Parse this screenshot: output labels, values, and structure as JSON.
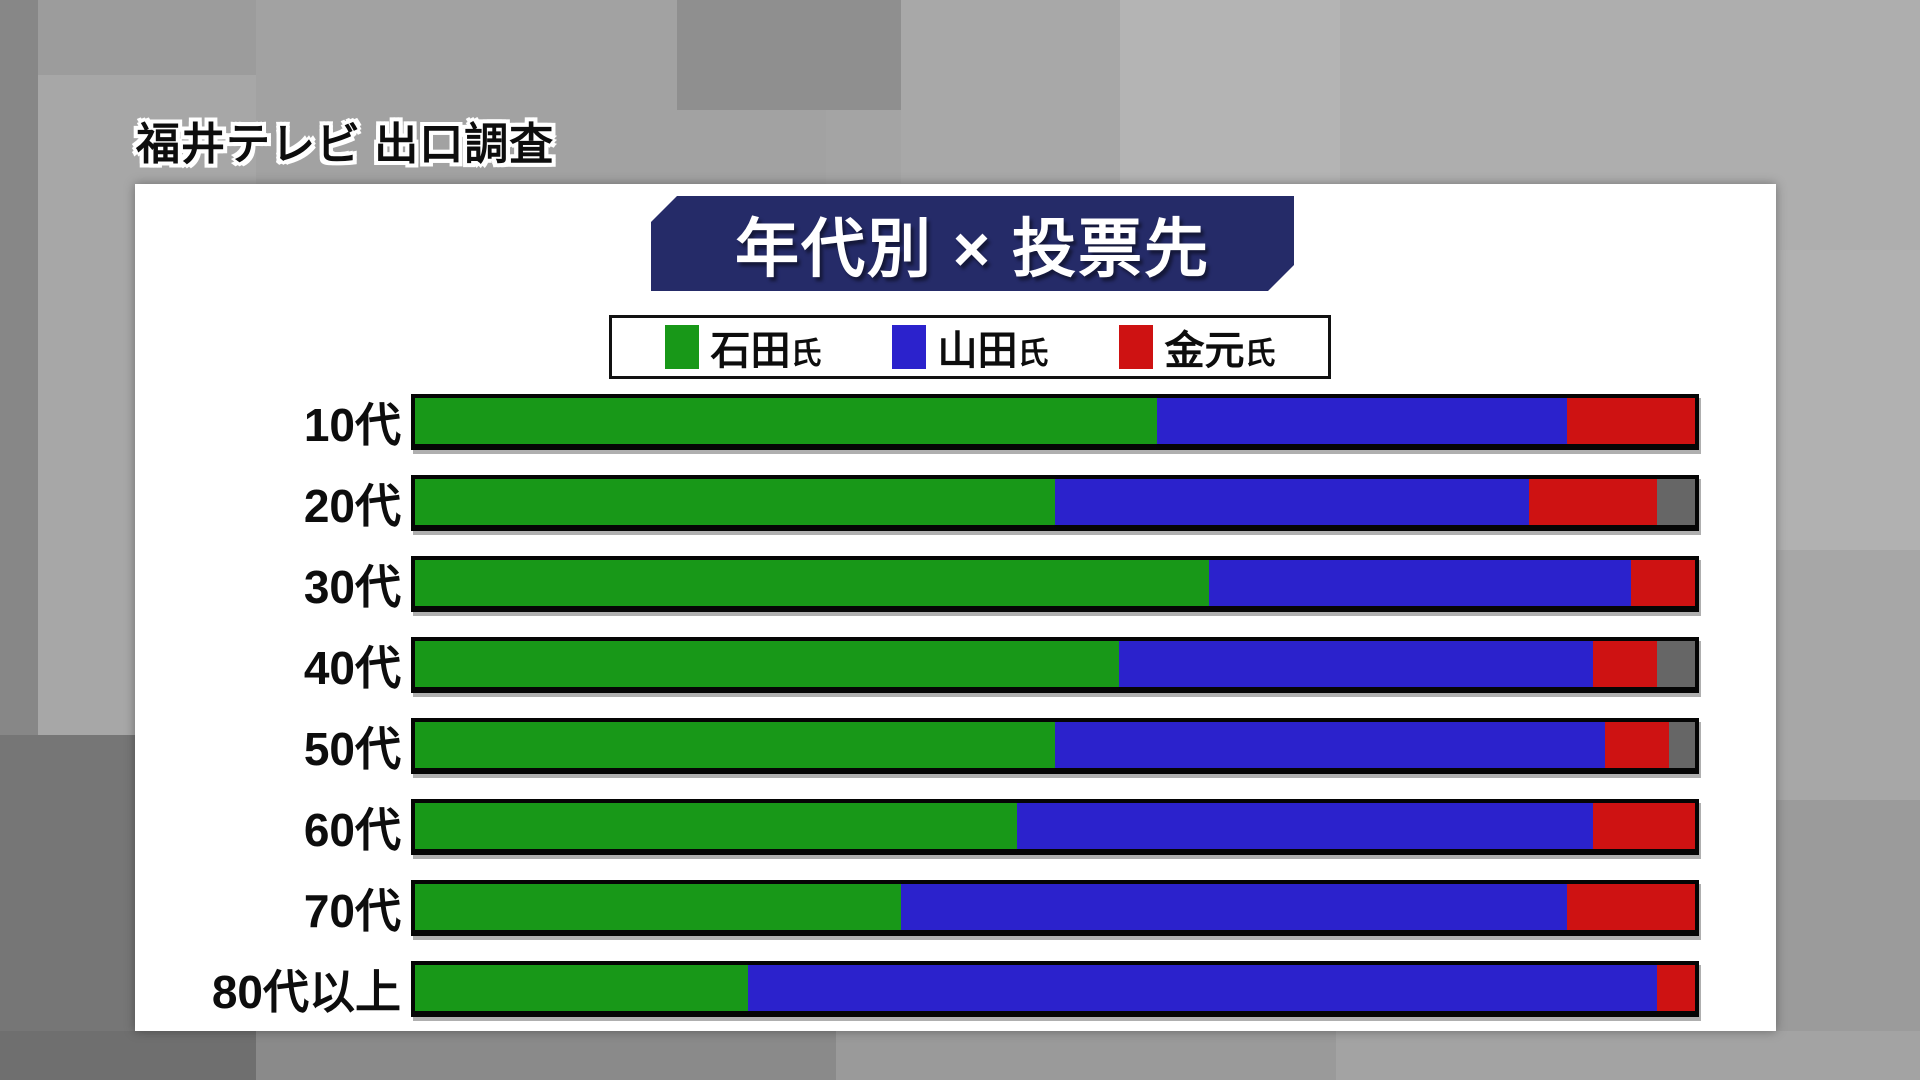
{
  "header": {
    "caption": "福井テレビ 出口調査"
  },
  "chart": {
    "title": "年代別 × 投票先",
    "legend": [
      {
        "id": "ishida",
        "label": "石田",
        "suffix": "氏",
        "color": "#189818"
      },
      {
        "id": "yamada",
        "label": "山田",
        "suffix": "氏",
        "color": "#2b22cc"
      },
      {
        "id": "kanemoto",
        "label": "金元",
        "suffix": "氏",
        "color": "#ce1212"
      }
    ]
  },
  "chart_data": {
    "type": "bar",
    "stacked": true,
    "orientation": "horizontal",
    "title": "年代別 × 投票先",
    "categories": [
      "10代",
      "20代",
      "30代",
      "40代",
      "50代",
      "60代",
      "70代",
      "80代以上"
    ],
    "series": [
      {
        "id": "ishida",
        "name": "石田氏",
        "color": "#189818",
        "values": [
          58,
          50,
          62,
          55,
          50,
          47,
          38,
          26
        ]
      },
      {
        "id": "yamada",
        "name": "山田氏",
        "color": "#2b22cc",
        "values": [
          32,
          37,
          33,
          37,
          43,
          45,
          52,
          71
        ]
      },
      {
        "id": "kanemoto",
        "name": "金元氏",
        "color": "#ce1212",
        "values": [
          10,
          10,
          5,
          5,
          5,
          8,
          10,
          3
        ]
      },
      {
        "id": "other",
        "name": "",
        "color": "#666666",
        "values": [
          0,
          3,
          0,
          3,
          2,
          0,
          0,
          0
        ]
      }
    ],
    "x_range": [
      0,
      100
    ],
    "grid": false,
    "legend_position": "top-center"
  }
}
